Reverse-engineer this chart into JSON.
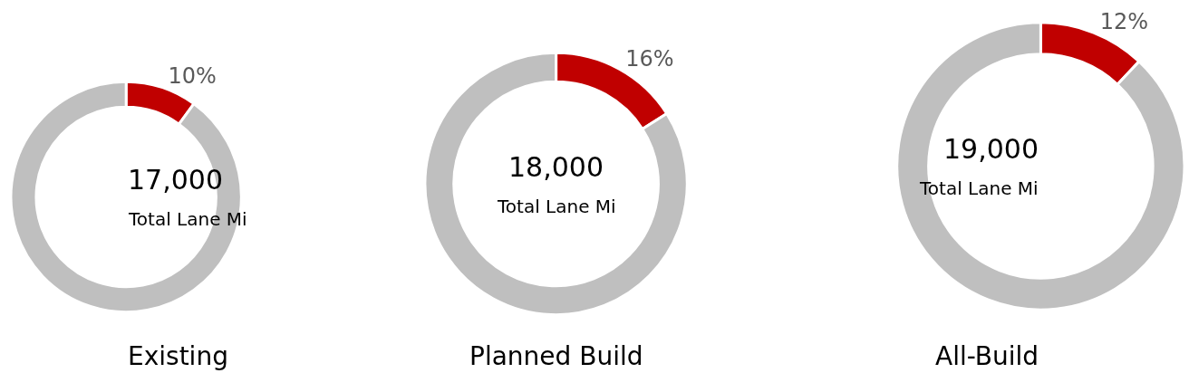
{
  "chart_data": [
    {
      "type": "donut",
      "title": "Existing",
      "categories": [
        null,
        null
      ],
      "values": [
        10,
        90
      ],
      "colors": [
        "#c00000",
        "#bfbfbf"
      ],
      "value_labels": [
        "10%",
        null
      ],
      "annotations": [
        "17,000",
        "Total Lane Mi"
      ]
    },
    {
      "type": "donut",
      "title": "Planned Build",
      "categories": [
        null,
        null
      ],
      "values": [
        16,
        84
      ],
      "colors": [
        "#c00000",
        "#bfbfbf"
      ],
      "value_labels": [
        "16%",
        null
      ],
      "annotations": [
        "18,000",
        "Total Lane Mi"
      ]
    },
    {
      "type": "donut",
      "title": "All-Build",
      "categories": [
        null,
        null
      ],
      "values": [
        12,
        88
      ],
      "colors": [
        "#c00000",
        "#bfbfbf"
      ],
      "value_labels": [
        "12%",
        null
      ],
      "annotations": [
        "19,000",
        "Total Lane Mi"
      ]
    }
  ]
}
